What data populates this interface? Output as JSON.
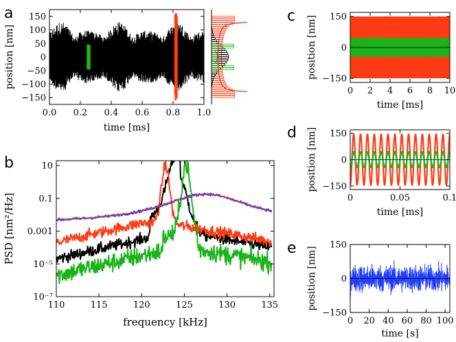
{
  "colors": {
    "black": "#000000",
    "red": "#ff3b14",
    "green": "#19b419",
    "blue": "#1f3dff",
    "fit": "#e03030"
  },
  "chart_data": [
    {
      "id": "a",
      "type": "line",
      "panel_label": "a",
      "xlabel": "time [ms]",
      "ylabel": "position [nm]",
      "xlim": [
        0.0,
        1.0
      ],
      "ylim": [
        -175,
        175
      ],
      "x_ticks": [
        "0.0",
        "0.2",
        "0.4",
        "0.6",
        "0.8",
        "1.0"
      ],
      "y_ticks": [
        "-150",
        "-100",
        "-50",
        "0",
        "50",
        "100",
        "150"
      ],
      "series": [
        {
          "color": "black",
          "amplitude": 130,
          "x_range": [
            0.0,
            1.0
          ]
        },
        {
          "color": "green",
          "amplitude": 45,
          "x_range": [
            0.245,
            0.262
          ]
        },
        {
          "color": "red",
          "amplitude": 160,
          "x_range": [
            0.812,
            0.826
          ]
        }
      ],
      "histogram": {
        "colors": [
          "black",
          "red",
          "green"
        ],
        "fit": "red"
      }
    },
    {
      "id": "b",
      "type": "line",
      "panel_label": "b",
      "xlabel": "frequency [kHz]",
      "ylabel": "PSD [nm²/Hz]",
      "yscale": "log",
      "xlim": [
        110,
        135.5
      ],
      "ylim": [
        1e-07,
        20
      ],
      "x_ticks": [
        "110",
        "115",
        "120",
        "125",
        "130",
        "135"
      ],
      "y_ticks": [
        "10",
        "0.1",
        "0.001",
        "10⁻⁵",
        "10⁻⁷"
      ],
      "series": [
        {
          "color": "blue",
          "peak_freq": 127.5,
          "peak_psd": 0.15,
          "level_at_110": 0.003
        },
        {
          "color": "red",
          "peak_freq": 122.8,
          "peak_psd": 10,
          "level_at_110": 0.0002
        },
        {
          "color": "black",
          "peak_freq": 124.2,
          "peak_psd": 3,
          "level_at_110": 2e-05
        },
        {
          "color": "green",
          "peak_freq": 125.2,
          "peak_psd": 2,
          "level_at_110": 2e-06
        }
      ]
    },
    {
      "id": "c",
      "type": "line",
      "panel_label": "c",
      "xlabel": "time [ms]",
      "ylabel": "position [nm]",
      "xlim": [
        0,
        10
      ],
      "ylim": [
        -170,
        170
      ],
      "x_ticks": [
        "0",
        "2",
        "4",
        "6",
        "8",
        "10"
      ],
      "y_ticks": [
        "150",
        "0",
        "-150"
      ],
      "series": [
        {
          "color": "red",
          "amplitude": 150
        },
        {
          "color": "green",
          "amplitude": 45
        }
      ]
    },
    {
      "id": "d",
      "type": "line",
      "panel_label": "d",
      "xlabel": "time [ms]",
      "ylabel": "position [nm]",
      "xlim": [
        0,
        0.1
      ],
      "ylim": [
        -170,
        170
      ],
      "x_ticks": [
        "0",
        "0.05",
        "0.1"
      ],
      "y_ticks": [
        "150",
        "0",
        "-150"
      ],
      "series": [
        {
          "color": "red",
          "amplitude": 145,
          "cycles": 14.5
        },
        {
          "color": "green",
          "amplitude": 45,
          "cycles": 14.5
        }
      ]
    },
    {
      "id": "e",
      "type": "line",
      "panel_label": "e",
      "xlabel": "time [s]",
      "ylabel": "position [nm]",
      "xlim": [
        0,
        105
      ],
      "ylim": [
        -150,
        150
      ],
      "x_ticks": [
        "0",
        "20",
        "40",
        "60",
        "80",
        "100"
      ],
      "y_ticks": [
        "150",
        "0",
        "-150"
      ],
      "series": [
        {
          "color": "blue",
          "amplitude": 120
        }
      ]
    }
  ]
}
